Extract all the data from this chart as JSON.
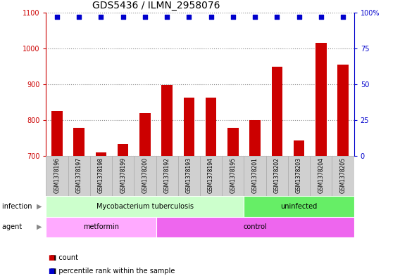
{
  "title": "GDS5436 / ILMN_2958076",
  "categories": [
    "GSM1378196",
    "GSM1378197",
    "GSM1378198",
    "GSM1378199",
    "GSM1378200",
    "GSM1378192",
    "GSM1378193",
    "GSM1378194",
    "GSM1378195",
    "GSM1378201",
    "GSM1378202",
    "GSM1378203",
    "GSM1378204",
    "GSM1378205"
  ],
  "bar_values": [
    825,
    778,
    710,
    733,
    820,
    898,
    863,
    862,
    778,
    800,
    948,
    743,
    1015,
    955
  ],
  "percentile_values": [
    97,
    97,
    97,
    97,
    97,
    97,
    97,
    97,
    97,
    97,
    97,
    97,
    97,
    97
  ],
  "bar_color": "#cc0000",
  "percentile_color": "#0000cc",
  "ylim_left": [
    700,
    1100
  ],
  "ylim_right": [
    0,
    100
  ],
  "yticks_left": [
    700,
    800,
    900,
    1000,
    1100
  ],
  "yticks_right": [
    0,
    25,
    50,
    75,
    100
  ],
  "ytick_labels_right": [
    "0",
    "25",
    "50",
    "75",
    "100%"
  ],
  "grid_color": "#888888",
  "bg_color": "#ffffff",
  "plot_bg_color": "#ffffff",
  "infection_groups": [
    {
      "label": "Mycobacterium tuberculosis",
      "start": 0,
      "end": 9,
      "color": "#ccffcc"
    },
    {
      "label": "uninfected",
      "start": 9,
      "end": 14,
      "color": "#66ee66"
    }
  ],
  "agent_groups": [
    {
      "label": "metformin",
      "start": 0,
      "end": 5,
      "color": "#ffaaff"
    },
    {
      "label": "control",
      "start": 5,
      "end": 14,
      "color": "#ee66ee"
    }
  ],
  "infection_label": "infection",
  "agent_label": "agent",
  "legend_count_label": "count",
  "legend_pct_label": "percentile rank within the sample",
  "title_fontsize": 10,
  "tick_fontsize": 7,
  "bar_width": 0.5,
  "left_axis_color": "#cc0000",
  "right_axis_color": "#0000cc",
  "label_band_color": "#c8c8c8",
  "label_cell_color": "#d0d0d0",
  "label_cell_edge": "#aaaaaa"
}
